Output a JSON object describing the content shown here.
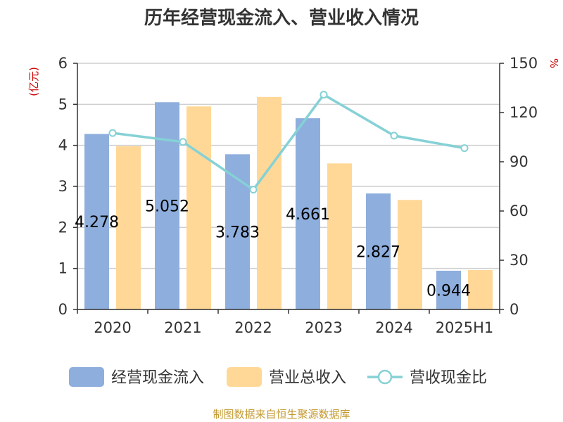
{
  "chart_data": {
    "type": "bar",
    "title": "历年经营现金流入、营业收入情况",
    "categories": [
      "2020",
      "2021",
      "2022",
      "2023",
      "2024",
      "2025H1"
    ],
    "series": [
      {
        "name": "经营现金流入",
        "type": "bar",
        "axis": "left",
        "color": "#8eaedd",
        "values": [
          4.278,
          5.052,
          3.783,
          4.661,
          2.827,
          0.944
        ],
        "labels": [
          "4.278",
          "5.052",
          "3.783",
          "4.661",
          "2.827",
          "0.944"
        ]
      },
      {
        "name": "营业总收入",
        "type": "bar",
        "axis": "left",
        "color": "#ffd897",
        "values": [
          3.98,
          4.95,
          5.18,
          3.56,
          2.67,
          0.96
        ]
      },
      {
        "name": "营收现金比",
        "type": "line",
        "axis": "right",
        "color": "#85d1d6",
        "values": [
          107.5,
          102.1,
          73.0,
          130.9,
          105.9,
          98.3
        ]
      }
    ],
    "y_left": {
      "unit": "(亿元)",
      "ylim": [
        0,
        6
      ],
      "ticks": [
        "0",
        "1",
        "2",
        "3",
        "4",
        "5",
        "6"
      ]
    },
    "y_right": {
      "unit": "%",
      "ylim": [
        0,
        150
      ],
      "ticks": [
        "0",
        "30",
        "60",
        "90",
        "120",
        "150"
      ]
    },
    "grid": true,
    "legend": {
      "position": "bottom-center"
    }
  },
  "unit_color": "#cc0000",
  "footer": {
    "source": "制图数据来自恒生聚源数据库",
    "color": "#c49a30"
  }
}
